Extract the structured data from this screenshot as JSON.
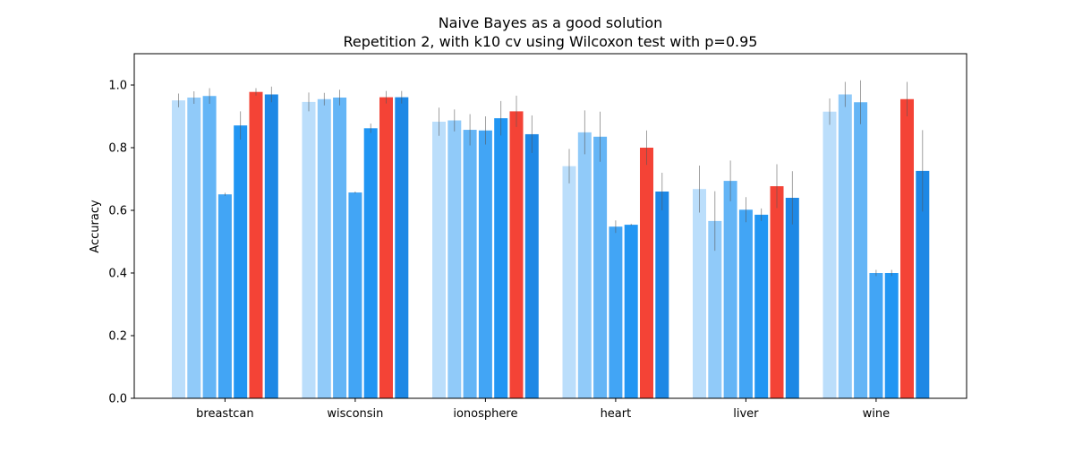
{
  "chart_data": {
    "type": "bar",
    "title": "Naive Bayes as a good solution",
    "subtitle": "Repetition 2, with k10 cv using Wilcoxon test with p=0.95",
    "xlabel": "",
    "ylabel": "Accuracy",
    "ylim": [
      0,
      1.1
    ],
    "yticks": [
      "0.0",
      "0.2",
      "0.4",
      "0.6",
      "0.8",
      "1.0"
    ],
    "grid": false,
    "categories": [
      "breastcan",
      "wisconsin",
      "ionosphere",
      "heart",
      "liver",
      "wine"
    ],
    "series": [
      {
        "color": "#bbdefb",
        "values": [
          0.951,
          0.946,
          0.883,
          0.741,
          0.668,
          0.915
        ],
        "errors": [
          0.022,
          0.03,
          0.045,
          0.055,
          0.075,
          0.042
        ]
      },
      {
        "color": "#90caf9",
        "values": [
          0.96,
          0.955,
          0.887,
          0.849,
          0.566,
          0.97
        ],
        "errors": [
          0.02,
          0.02,
          0.035,
          0.07,
          0.095,
          0.04
        ]
      },
      {
        "color": "#64b5f6",
        "values": [
          0.965,
          0.96,
          0.857,
          0.835,
          0.694,
          0.945
        ],
        "errors": [
          0.025,
          0.025,
          0.05,
          0.08,
          0.065,
          0.07
        ]
      },
      {
        "color": "#42a5f5",
        "values": [
          0.651,
          0.657,
          0.855,
          0.548,
          0.602,
          0.4
        ],
        "errors": [
          0.005,
          0.003,
          0.045,
          0.02,
          0.04,
          0.01
        ]
      },
      {
        "color": "#2196f3",
        "values": [
          0.871,
          0.862,
          0.894,
          0.554,
          0.586,
          0.4
        ],
        "errors": [
          0.045,
          0.015,
          0.055,
          0.003,
          0.02,
          0.01
        ]
      },
      {
        "color": "#f44336",
        "values": [
          0.978,
          0.961,
          0.916,
          0.8,
          0.677,
          0.955
        ],
        "errors": [
          0.012,
          0.02,
          0.05,
          0.055,
          0.07,
          0.055
        ]
      },
      {
        "color": "#1e88e5",
        "values": [
          0.97,
          0.961,
          0.843,
          0.66,
          0.64,
          0.726
        ],
        "errors": [
          0.025,
          0.02,
          0.06,
          0.06,
          0.085,
          0.13
        ]
      }
    ]
  }
}
